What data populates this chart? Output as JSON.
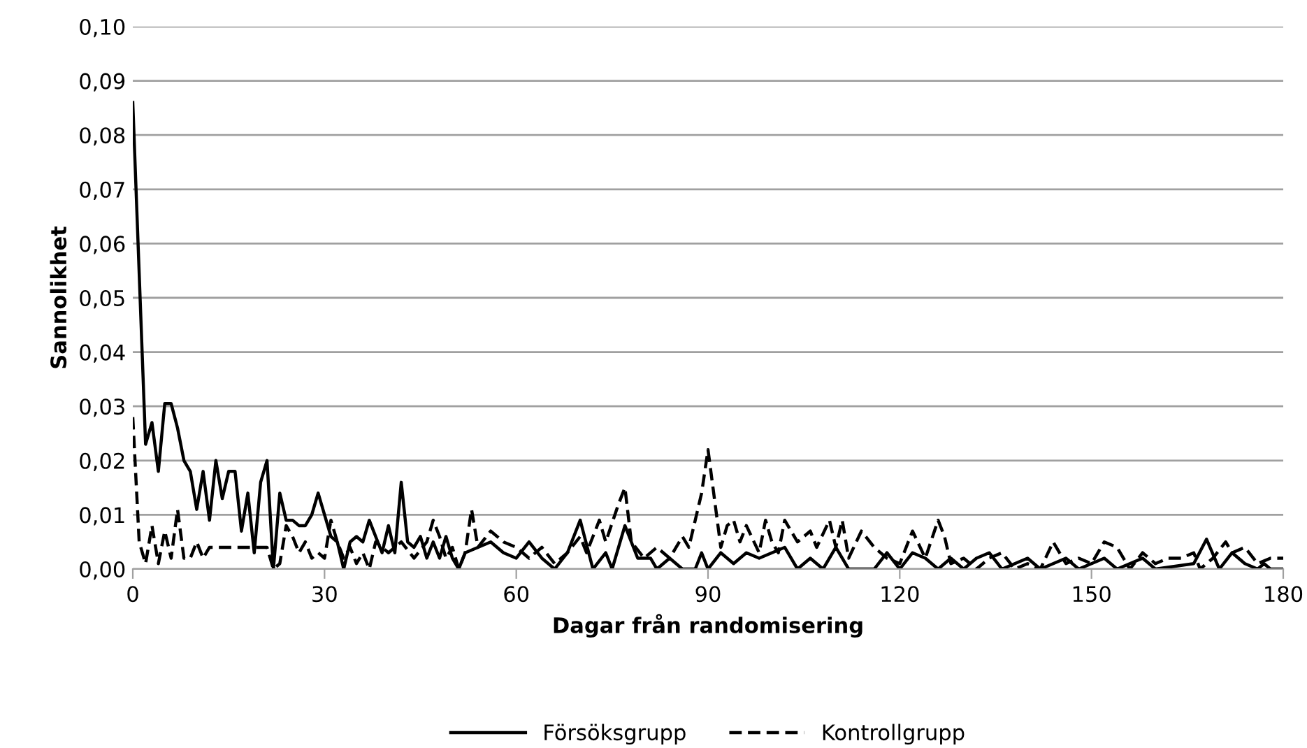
{
  "chart_data": {
    "type": "line",
    "xlabel": "Dagar från randomisering",
    "ylabel": "Sannolikhet",
    "xlim": [
      0,
      180
    ],
    "xticks": [
      0,
      30,
      60,
      90,
      120,
      150,
      180
    ],
    "ylim": [
      0,
      0.1
    ],
    "yticks": [
      {
        "value": 0,
        "label": "0,00"
      },
      {
        "value": 0.01,
        "label": "0,01"
      },
      {
        "value": 0.02,
        "label": "0,02"
      },
      {
        "value": 0.03,
        "label": "0,03"
      },
      {
        "value": 0.04,
        "label": "0,04"
      },
      {
        "value": 0.05,
        "label": "0,05"
      },
      {
        "value": 0.06,
        "label": "0,06"
      },
      {
        "value": 0.07,
        "label": "0,07"
      },
      {
        "value": 0.08,
        "label": "0,08"
      },
      {
        "value": 0.09,
        "label": "0,09"
      },
      {
        "value": 0.1,
        "label": "0,10"
      }
    ],
    "grid": "y",
    "legend": "bottom",
    "marker": "none",
    "series": [
      {
        "name": "Försöksgrupp",
        "color": "#000000",
        "line_style": "solid",
        "x": [
          0,
          2,
          3,
          4,
          5,
          6,
          7,
          8,
          9,
          10,
          11,
          12,
          13,
          14,
          15,
          16,
          17,
          18,
          19,
          20,
          21,
          22,
          23,
          24,
          25,
          26,
          27,
          28,
          29,
          30,
          31,
          32,
          33,
          34,
          35,
          36,
          37,
          38,
          39,
          40,
          41,
          42,
          43,
          44,
          45,
          46,
          47,
          48,
          49,
          50,
          51,
          52,
          54,
          56,
          58,
          60,
          62,
          64,
          66,
          68,
          70,
          72,
          74,
          75,
          77,
          79,
          81,
          82,
          84,
          86,
          88,
          89,
          90,
          92,
          94,
          96,
          98,
          100,
          102,
          104,
          106,
          108,
          110,
          112,
          116,
          118,
          120,
          122,
          124,
          126,
          128,
          130,
          132,
          134,
          136,
          140,
          142,
          146,
          148,
          152,
          154,
          158,
          160,
          166,
          168,
          170,
          172,
          174,
          176,
          177,
          178,
          180
        ],
        "values": [
          0.086,
          0.023,
          0.027,
          0.018,
          0.0305,
          0.0305,
          0.026,
          0.02,
          0.018,
          0.011,
          0.018,
          0.009,
          0.02,
          0.013,
          0.018,
          0.018,
          0.007,
          0.014,
          0.003,
          0.016,
          0.02,
          0.0,
          0.014,
          0.009,
          0.009,
          0.008,
          0.008,
          0.01,
          0.014,
          0.01,
          0.006,
          0.005,
          0.0,
          0.005,
          0.006,
          0.005,
          0.009,
          0.006,
          0.003,
          0.008,
          0.003,
          0.016,
          0.005,
          0.004,
          0.006,
          0.002,
          0.005,
          0.002,
          0.006,
          0.002,
          0.0,
          0.003,
          0.004,
          0.005,
          0.003,
          0.002,
          0.005,
          0.002,
          0.0,
          0.003,
          0.009,
          0.0,
          0.003,
          0.0,
          0.008,
          0.002,
          0.002,
          0.0,
          0.002,
          0.0,
          0.0,
          0.003,
          0.0,
          0.003,
          0.001,
          0.003,
          0.002,
          0.003,
          0.004,
          0.0,
          0.002,
          0.0,
          0.004,
          0.0,
          0.0,
          0.003,
          0.0,
          0.003,
          0.002,
          0.0,
          0.002,
          0.0,
          0.002,
          0.003,
          0.0,
          0.002,
          0.0,
          0.002,
          0.0,
          0.002,
          0.0,
          0.002,
          0.0,
          0.001,
          0.0055,
          0.0,
          0.003,
          0.001,
          0.0,
          0.001,
          0.0,
          0.0
        ]
      },
      {
        "name": "Kontrollgrupp",
        "color": "#000000",
        "line_style": "dashed",
        "x": [
          0,
          1,
          2,
          3,
          4,
          5,
          6,
          7,
          8,
          9,
          10,
          11,
          12,
          21,
          22,
          23,
          24,
          25,
          26,
          27,
          28,
          29,
          30,
          31,
          32,
          33,
          34,
          35,
          36,
          37,
          38,
          40,
          42,
          44,
          46,
          47,
          48,
          49,
          50,
          51,
          52,
          53,
          54,
          56,
          58,
          60,
          62,
          64,
          66,
          68,
          70,
          71,
          73,
          74,
          76,
          77,
          78,
          80,
          82,
          84,
          86,
          87,
          89,
          90,
          91,
          92,
          93,
          94,
          95,
          96,
          98,
          99,
          100,
          101,
          102,
          104,
          106,
          107,
          109,
          110,
          111,
          112,
          114,
          116,
          118,
          120,
          122,
          124,
          126,
          127,
          128,
          130,
          132,
          134,
          136,
          138,
          140,
          142,
          144,
          146,
          148,
          150,
          152,
          154,
          156,
          158,
          160,
          162,
          164,
          166,
          167,
          169,
          171,
          172,
          174,
          176,
          178,
          180
        ],
        "values": [
          0.028,
          0.005,
          0.001,
          0.008,
          0.001,
          0.007,
          0.002,
          0.011,
          0.002,
          0.002,
          0.005,
          0.002,
          0.004,
          0.004,
          0.0,
          0.001,
          0.008,
          0.006,
          0.003,
          0.005,
          0.002,
          0.003,
          0.002,
          0.009,
          0.005,
          0.002,
          0.004,
          0.001,
          0.003,
          0.0,
          0.005,
          0.003,
          0.005,
          0.002,
          0.005,
          0.009,
          0.006,
          0.002,
          0.004,
          0.0,
          0.003,
          0.011,
          0.004,
          0.007,
          0.005,
          0.004,
          0.002,
          0.004,
          0.001,
          0.003,
          0.006,
          0.003,
          0.009,
          0.005,
          0.012,
          0.015,
          0.005,
          0.002,
          0.004,
          0.002,
          0.006,
          0.004,
          0.014,
          0.022,
          0.013,
          0.004,
          0.008,
          0.009,
          0.005,
          0.008,
          0.003,
          0.009,
          0.005,
          0.003,
          0.009,
          0.005,
          0.007,
          0.004,
          0.009,
          0.004,
          0.009,
          0.002,
          0.007,
          0.004,
          0.002,
          0.001,
          0.007,
          0.002,
          0.009,
          0.006,
          0.001,
          0.002,
          0.0,
          0.002,
          0.003,
          0.0,
          0.001,
          0.0,
          0.005,
          0.001,
          0.002,
          0.001,
          0.005,
          0.004,
          0.0,
          0.003,
          0.001,
          0.002,
          0.002,
          0.003,
          0.0,
          0.002,
          0.005,
          0.003,
          0.004,
          0.001,
          0.002,
          0.002
        ]
      }
    ]
  }
}
